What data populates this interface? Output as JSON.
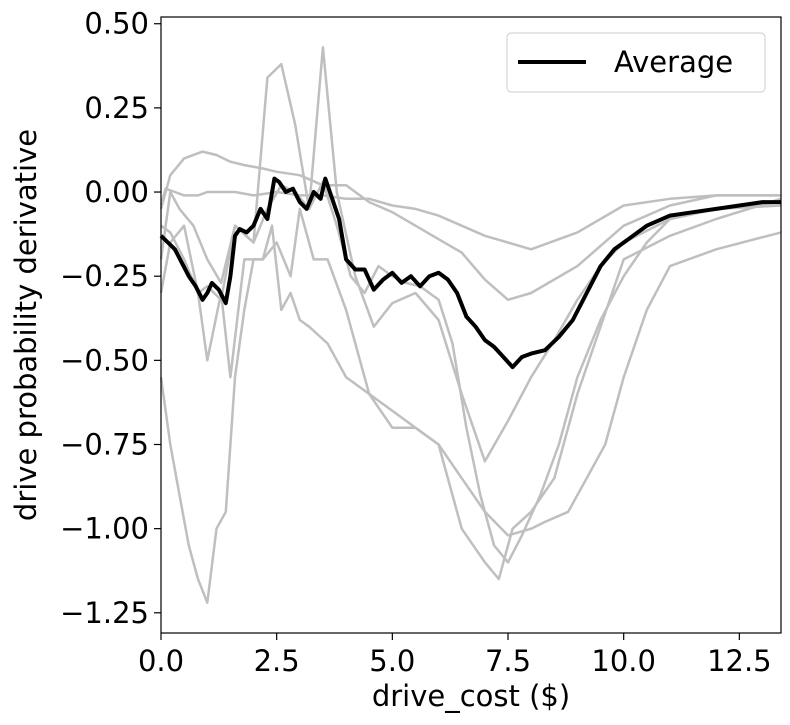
{
  "chart_data": {
    "type": "line",
    "title": "",
    "xlabel": "drive_cost ($)",
    "ylabel": "drive probability derivative",
    "xlim": [
      0,
      13.4
    ],
    "ylim": [
      -1.31,
      0.52
    ],
    "xticks": [
      0.0,
      2.5,
      5.0,
      7.5,
      10.0,
      12.5
    ],
    "xtick_labels": [
      "0.0",
      "2.5",
      "5.0",
      "7.5",
      "10.0",
      "12.5"
    ],
    "yticks": [
      0.5,
      0.25,
      0.0,
      -0.25,
      -0.5,
      -0.75,
      -1.0,
      -1.25
    ],
    "ytick_labels": [
      "0.50",
      "0.25",
      "0.00",
      "−0.25",
      "−0.50",
      "−0.75",
      "−1.00",
      "−1.25"
    ],
    "grid": false,
    "legend": {
      "position": "top-right",
      "entries": [
        "Average"
      ]
    },
    "colors": {
      "individual": "#bfbfbf",
      "average": "#000000"
    },
    "individual_series": [
      {
        "x": [
          0,
          0.1,
          0.3,
          0.5,
          0.8,
          1.0,
          1.3,
          1.6,
          2.0,
          2.5,
          3.0,
          3.5,
          4.0,
          4.5,
          5.0,
          5.5,
          6.0,
          6.5,
          7.0,
          8.0,
          9.0,
          10.0,
          11.0,
          12.0,
          13.4
        ],
        "y": [
          -0.04,
          0.01,
          0.0,
          -0.01,
          -0.01,
          0.0,
          0.0,
          0.0,
          -0.01,
          0.0,
          -0.01,
          -0.01,
          -0.02,
          -0.02,
          -0.04,
          -0.05,
          -0.07,
          -0.1,
          -0.13,
          -0.17,
          -0.12,
          -0.04,
          -0.02,
          -0.01,
          -0.01
        ]
      },
      {
        "x": [
          0,
          0.2,
          0.5,
          0.9,
          1.2,
          1.5,
          1.8,
          2.2,
          2.5,
          3.0,
          3.5,
          4.0,
          4.5,
          5.0,
          5.5,
          6.0,
          6.5,
          7.0,
          7.5,
          8.0,
          9.0,
          10.0,
          11.0,
          12.0,
          13.4
        ],
        "y": [
          -0.05,
          0.05,
          0.1,
          0.12,
          0.11,
          0.09,
          0.08,
          0.07,
          0.06,
          0.05,
          0.02,
          0.02,
          -0.03,
          -0.06,
          -0.1,
          -0.14,
          -0.18,
          -0.26,
          -0.32,
          -0.3,
          -0.22,
          -0.1,
          -0.04,
          -0.01,
          -0.01
        ]
      },
      {
        "x": [
          0,
          0.2,
          0.4,
          0.7,
          1.0,
          1.3,
          1.6,
          2.0,
          2.3,
          2.6,
          2.9,
          3.2,
          3.5,
          3.8,
          4.2,
          4.6,
          5.0,
          5.5,
          6.0,
          6.5,
          7.0,
          7.5,
          8.0,
          8.5,
          9.0,
          9.5,
          10.0,
          11.0,
          12.0,
          13.4
        ],
        "y": [
          -0.2,
          0.0,
          -0.05,
          -0.1,
          -0.2,
          -0.27,
          -0.1,
          -0.15,
          0.34,
          0.38,
          0.2,
          -0.05,
          0.43,
          0.0,
          -0.25,
          -0.4,
          -0.33,
          -0.3,
          -0.38,
          -0.6,
          -0.8,
          -0.68,
          -0.55,
          -0.44,
          -0.32,
          -0.22,
          -0.15,
          -0.08,
          -0.05,
          -0.04
        ]
      },
      {
        "x": [
          0,
          0.2,
          0.5,
          0.8,
          1.0,
          1.3,
          1.5,
          1.8,
          2.2,
          2.5,
          2.8,
          3.0,
          3.3,
          3.6,
          4.0,
          4.5,
          5.0,
          5.5,
          6.0,
          6.5,
          7.0,
          7.3,
          7.6,
          8.0,
          8.5,
          9.0,
          10.0,
          11.0,
          12.0,
          13.4
        ],
        "y": [
          -0.3,
          -0.15,
          -0.1,
          -0.3,
          -0.5,
          -0.3,
          -0.55,
          -0.2,
          -0.2,
          -0.15,
          -0.25,
          -0.05,
          -0.2,
          -0.2,
          -0.35,
          -0.6,
          -0.7,
          -0.7,
          -0.75,
          -1.0,
          -1.1,
          -1.15,
          -1.0,
          -0.95,
          -0.85,
          -0.6,
          -0.2,
          -0.13,
          -0.08,
          -0.02
        ]
      },
      {
        "x": [
          0,
          0.2,
          0.4,
          0.6,
          0.8,
          1.0,
          1.2,
          1.4,
          1.6,
          1.8,
          2.0,
          2.2,
          2.4,
          2.6,
          2.8,
          3.0,
          3.2,
          3.6,
          4.0,
          4.5,
          5.0,
          5.5,
          6.0,
          6.5,
          7.0,
          7.5,
          8.0,
          8.3,
          8.8,
          9.2,
          9.6,
          10.0,
          10.5,
          11.0,
          12.0,
          13.4
        ],
        "y": [
          -0.55,
          -0.75,
          -0.9,
          -1.05,
          -1.15,
          -1.22,
          -1.0,
          -0.95,
          -0.55,
          -0.35,
          -0.2,
          -0.2,
          -0.1,
          -0.35,
          -0.3,
          -0.38,
          -0.4,
          -0.45,
          -0.55,
          -0.6,
          -0.65,
          -0.7,
          -0.75,
          -0.85,
          -0.95,
          -1.02,
          -1.0,
          -0.98,
          -0.95,
          -0.85,
          -0.75,
          -0.55,
          -0.35,
          -0.22,
          -0.17,
          -0.12
        ]
      },
      {
        "x": [
          0,
          0.2,
          0.5,
          0.8,
          1.0,
          1.3,
          1.6,
          2.0,
          2.3,
          2.6,
          2.9,
          3.2,
          3.5,
          3.8,
          4.1,
          4.4,
          4.7,
          5.0,
          5.3,
          5.6,
          6.0,
          6.3,
          6.6,
          6.9,
          7.2,
          7.5,
          7.8,
          8.2,
          8.6,
          9.0,
          9.5,
          10.0,
          10.5,
          11.0,
          12.0,
          13.4
        ],
        "y": [
          -0.1,
          -0.12,
          -0.2,
          -0.3,
          -0.28,
          -0.32,
          -0.1,
          -0.15,
          -0.05,
          0.02,
          0.0,
          -0.05,
          0.03,
          -0.1,
          -0.25,
          -0.3,
          -0.22,
          -0.25,
          -0.27,
          -0.28,
          -0.32,
          -0.45,
          -0.7,
          -0.9,
          -1.05,
          -1.1,
          -1.02,
          -0.9,
          -0.75,
          -0.55,
          -0.38,
          -0.25,
          -0.15,
          -0.08,
          -0.05,
          -0.03
        ]
      }
    ],
    "average": {
      "name": "Average",
      "x": [
        0.0,
        0.15,
        0.3,
        0.45,
        0.6,
        0.75,
        0.9,
        1.0,
        1.1,
        1.25,
        1.4,
        1.5,
        1.6,
        1.7,
        1.85,
        2.0,
        2.15,
        2.3,
        2.45,
        2.55,
        2.7,
        2.85,
        3.0,
        3.15,
        3.3,
        3.45,
        3.55,
        3.7,
        3.85,
        4.0,
        4.2,
        4.4,
        4.6,
        4.8,
        5.0,
        5.2,
        5.4,
        5.6,
        5.8,
        6.0,
        6.2,
        6.4,
        6.6,
        6.8,
        7.0,
        7.2,
        7.4,
        7.6,
        7.8,
        8.0,
        8.3,
        8.6,
        8.9,
        9.2,
        9.5,
        9.8,
        10.1,
        10.5,
        11.0,
        11.5,
        12.0,
        12.5,
        13.0,
        13.4
      ],
      "y": [
        -0.13,
        -0.15,
        -0.17,
        -0.21,
        -0.25,
        -0.28,
        -0.32,
        -0.3,
        -0.27,
        -0.29,
        -0.33,
        -0.25,
        -0.13,
        -0.11,
        -0.12,
        -0.1,
        -0.05,
        -0.08,
        0.04,
        0.03,
        0.0,
        0.01,
        -0.03,
        -0.05,
        0.0,
        -0.02,
        0.04,
        -0.02,
        -0.08,
        -0.2,
        -0.23,
        -0.23,
        -0.29,
        -0.26,
        -0.24,
        -0.27,
        -0.25,
        -0.28,
        -0.25,
        -0.24,
        -0.26,
        -0.3,
        -0.37,
        -0.4,
        -0.44,
        -0.46,
        -0.49,
        -0.52,
        -0.49,
        -0.48,
        -0.47,
        -0.43,
        -0.38,
        -0.3,
        -0.22,
        -0.17,
        -0.14,
        -0.1,
        -0.07,
        -0.06,
        -0.05,
        -0.04,
        -0.03,
        -0.03
      ]
    }
  }
}
